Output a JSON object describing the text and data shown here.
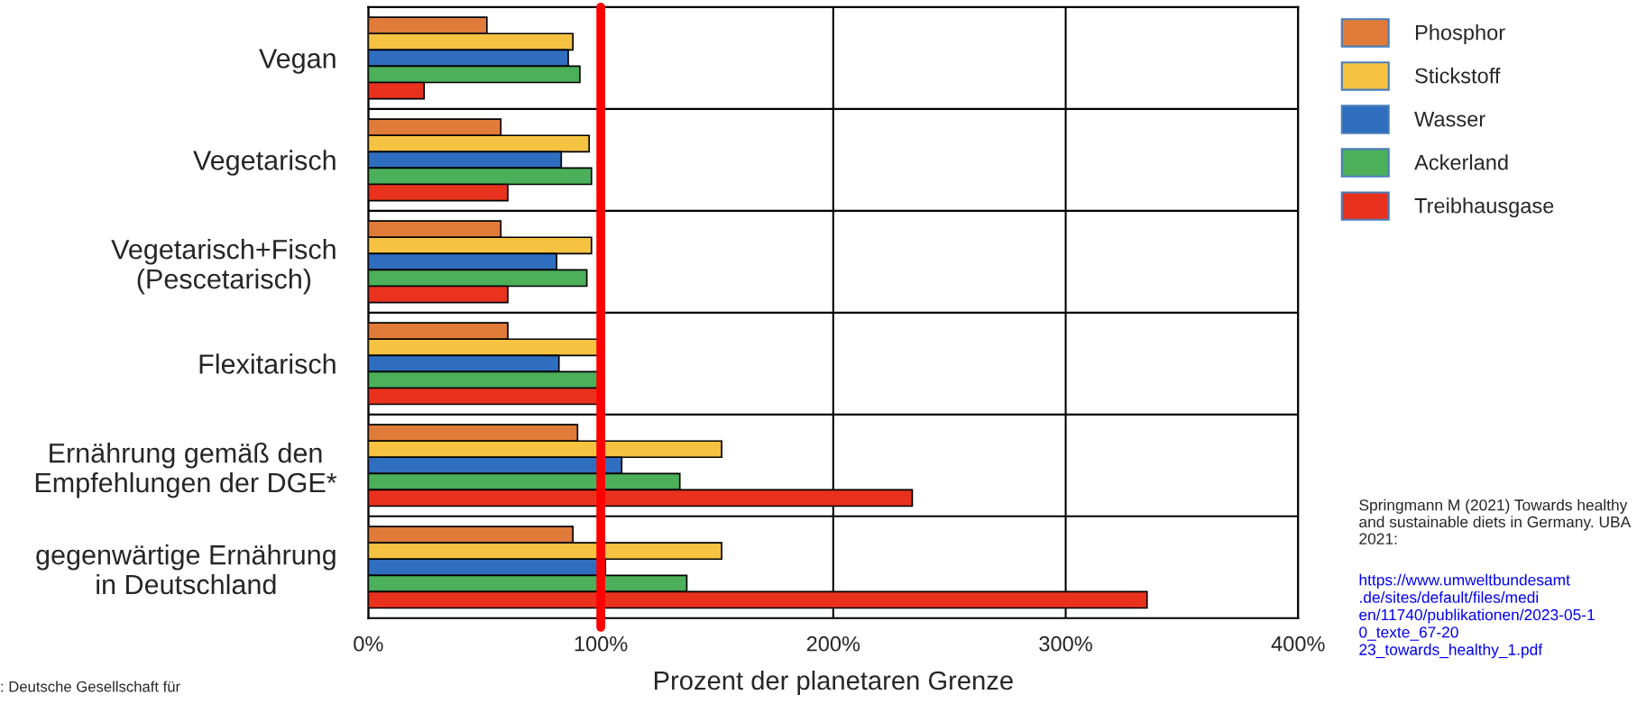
{
  "chart_data": {
    "type": "bar",
    "orientation": "horizontal",
    "categories": [
      "Vegan",
      "Vegetarisch",
      "Vegetarisch+Fisch\n(Pescetarisch)",
      "Flexitarisch",
      "Ernährung gemäß den\nEmpfehlungen der DGE*",
      "gegenwärtige Ernährung\nin Deutschland"
    ],
    "series": [
      {
        "name": "Phosphor",
        "color": "#e07b39",
        "values": [
          51,
          57,
          57,
          60,
          90,
          88
        ]
      },
      {
        "name": "Stickstoff",
        "color": "#f5c242",
        "values": [
          88,
          95,
          96,
          99,
          152,
          152
        ]
      },
      {
        "name": "Wasser",
        "color": "#2f6ebf",
        "values": [
          86,
          83,
          81,
          82,
          109,
          102
        ]
      },
      {
        "name": "Ackerland",
        "color": "#4caf5a",
        "values": [
          91,
          96,
          94,
          99,
          134,
          137
        ]
      },
      {
        "name": "Treibhausgase",
        "color": "#e8321e",
        "values": [
          24,
          60,
          60,
          99,
          234,
          335
        ]
      }
    ],
    "xlabel": "Prozent der planetaren Grenze",
    "xlim": [
      0,
      400
    ],
    "xticks": [
      {
        "value": 0,
        "label": "0%"
      },
      {
        "value": 100,
        "label": "100%"
      },
      {
        "value": 200,
        "label": "200%"
      },
      {
        "value": 300,
        "label": "300%"
      },
      {
        "value": 400,
        "label": "400%"
      }
    ],
    "ref_lines": [
      {
        "axis": "x",
        "value": 100,
        "color": "#ff0000"
      }
    ],
    "grid": true,
    "legend": "top right",
    "annotations": [
      "Springmann M (2021) Towards healthy and sustainable diets in Germany. UBA 2021:",
      "https://www.umweltbundesamt.de/sites/default/files/medien/11740/publikationen/2023-05-10_texte_67-2023_towards_healthy_1.pdf",
      ": Deutsche Gesellschaft für"
    ]
  }
}
